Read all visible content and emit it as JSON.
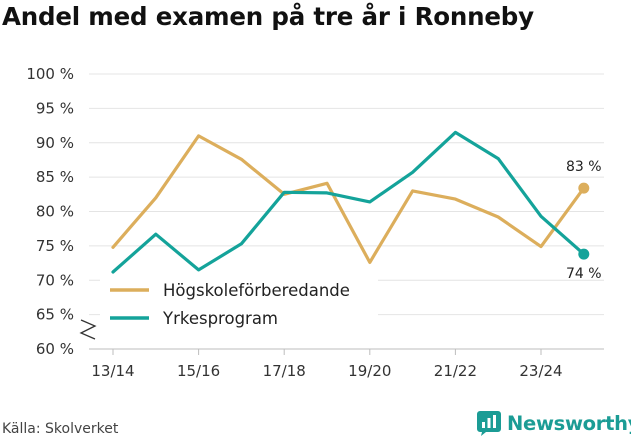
{
  "chart_data": {
    "type": "line",
    "title": "Andel med examen på tre år i Ronneby",
    "x": [
      "13/14",
      "14/15",
      "15/16",
      "16/17",
      "17/18",
      "18/19",
      "19/20",
      "20/21",
      "21/22",
      "22/23",
      "23/24",
      "24/25"
    ],
    "x_tick_labels": [
      "13/14",
      "15/16",
      "17/18",
      "19/20",
      "21/22",
      "23/24"
    ],
    "ylim": [
      60,
      100
    ],
    "y_ticks": [
      60,
      65,
      70,
      75,
      80,
      85,
      90,
      95,
      100
    ],
    "y_tick_suffix": " %",
    "axis_break": true,
    "grid": true,
    "legend_position": "bottom-left",
    "series": [
      {
        "name": "Högskoleförberedande",
        "color": "#dcae5c",
        "values": [
          74.8,
          82.0,
          91.0,
          87.6,
          82.5,
          84.1,
          72.6,
          83.0,
          81.8,
          79.2,
          74.9,
          83.4
        ],
        "end_label": "83 %",
        "end_label_position": "above"
      },
      {
        "name": "Yrkesprogram",
        "color": "#14a39a",
        "values": [
          71.2,
          76.7,
          71.5,
          75.3,
          82.8,
          82.7,
          81.4,
          85.7,
          91.5,
          87.7,
          79.3,
          73.8
        ],
        "end_label": "74 %",
        "end_label_position": "below"
      }
    ]
  },
  "footer": {
    "source": "Källa: Skolverket",
    "brand_name": "Newsworthy",
    "brand_color": "#1b9c95",
    "brand_icon": "bar-chart-logo-icon"
  }
}
